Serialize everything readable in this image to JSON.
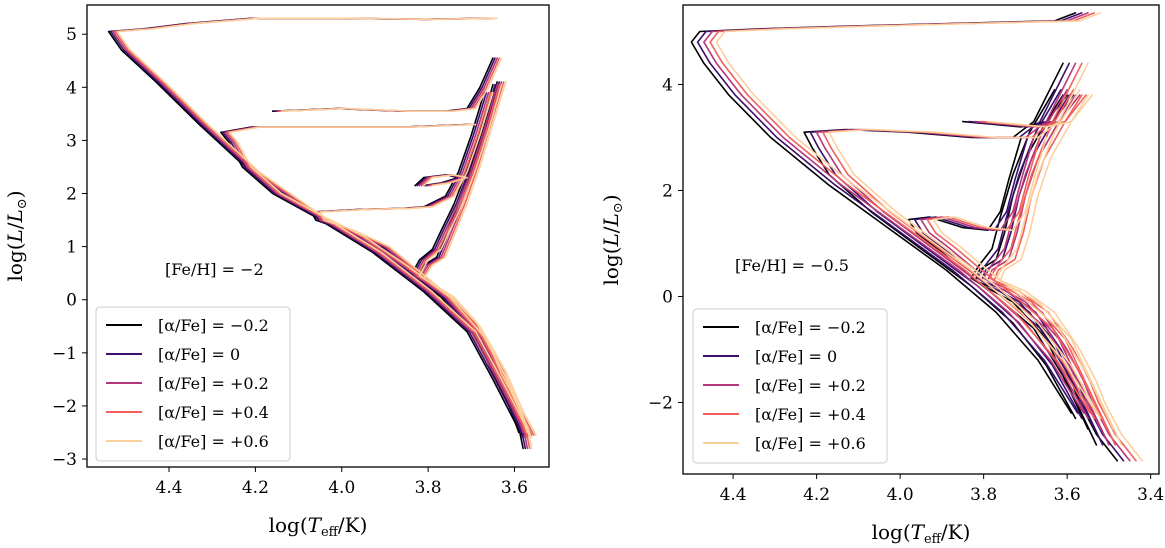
{
  "chart_data": [
    {
      "type": "line",
      "panel": "left",
      "xlabel": "log(T_eff/K)",
      "ylabel": "log(L/L_⊙)",
      "xlim": [
        4.59,
        3.52
      ],
      "ylim": [
        -3.15,
        5.55
      ],
      "x_inverted": true,
      "xticks": [
        4.4,
        4.2,
        4.0,
        3.8,
        3.6
      ],
      "yticks": [
        -3,
        -2,
        -1,
        0,
        1,
        2,
        3,
        4,
        5
      ],
      "xtick_labels": [
        "4.4",
        "4.2",
        "4.0",
        "3.8",
        "3.6"
      ],
      "ytick_labels": [
        "−3",
        "−2",
        "−1",
        "0",
        "1",
        "2",
        "3",
        "4",
        "5"
      ],
      "annotation": "[Fe/H] = −2",
      "grid": false,
      "legend_position": "lower-left",
      "legend": [
        "[α/Fe] = −0.2",
        "[α/Fe] = 0",
        "[α/Fe] = +0.2",
        "[α/Fe] = +0.4",
        "[α/Fe] = +0.6"
      ],
      "series_colors": [
        "#000004",
        "#3b0f70",
        "#b5367a",
        "#f1605d",
        "#fcd09d"
      ],
      "series_shift": [
        -0.01,
        -0.005,
        0.0,
        0.005,
        0.01
      ],
      "tracks": [
        [
          [
            3.57,
            -2.8
          ],
          [
            3.58,
            -2.4
          ],
          [
            3.6,
            -2.05
          ],
          [
            3.62,
            -1.7
          ],
          [
            3.64,
            -1.4
          ],
          [
            3.66,
            -1.0
          ],
          [
            3.7,
            -0.4
          ],
          [
            3.75,
            0.05
          ],
          [
            3.8,
            0.3
          ],
          [
            3.82,
            0.4
          ],
          [
            3.8,
            0.65
          ],
          [
            3.77,
            0.8
          ],
          [
            3.75,
            1.2
          ],
          [
            3.72,
            1.8
          ],
          [
            3.69,
            2.5
          ],
          [
            3.66,
            3.3
          ],
          [
            3.63,
            4.1
          ]
        ],
        [
          [
            3.57,
            -2.6
          ],
          [
            3.6,
            -2.0
          ],
          [
            3.64,
            -1.3
          ],
          [
            3.7,
            -0.4
          ],
          [
            3.76,
            0.1
          ],
          [
            3.81,
            0.35
          ],
          [
            3.83,
            0.45
          ],
          [
            3.81,
            0.75
          ],
          [
            3.78,
            0.95
          ],
          [
            3.76,
            1.3
          ],
          [
            3.73,
            1.8
          ],
          [
            3.7,
            2.45
          ],
          [
            3.67,
            3.2
          ],
          [
            3.64,
            4.05
          ]
        ],
        [
          [
            3.56,
            -2.55
          ],
          [
            3.59,
            -2.1
          ],
          [
            3.63,
            -1.35
          ],
          [
            3.69,
            -0.5
          ],
          [
            3.75,
            0.0
          ],
          [
            3.84,
            0.6
          ],
          [
            3.9,
            1.0
          ],
          [
            3.98,
            1.3
          ],
          [
            4.05,
            1.5
          ],
          [
            4.06,
            1.65
          ],
          [
            3.95,
            1.7
          ],
          [
            3.85,
            1.72
          ],
          [
            3.8,
            1.75
          ],
          [
            3.75,
            1.95
          ],
          [
            3.72,
            2.4
          ],
          [
            3.69,
            3.1
          ],
          [
            3.66,
            3.9
          ]
        ],
        [
          [
            3.58,
            -2.5
          ],
          [
            3.62,
            -1.6
          ],
          [
            3.68,
            -0.7
          ],
          [
            3.76,
            0.05
          ],
          [
            3.86,
            0.65
          ],
          [
            3.96,
            1.2
          ],
          [
            4.06,
            1.6
          ],
          [
            4.15,
            2.0
          ],
          [
            4.22,
            2.5
          ],
          [
            4.25,
            2.95
          ],
          [
            4.27,
            3.15
          ],
          [
            4.2,
            3.25
          ],
          [
            4.0,
            3.25
          ],
          [
            3.85,
            3.25
          ],
          [
            3.7,
            3.3
          ]
        ],
        [
          [
            3.58,
            -2.45
          ],
          [
            3.64,
            -1.5
          ],
          [
            3.7,
            -0.6
          ],
          [
            3.8,
            0.15
          ],
          [
            3.92,
            0.9
          ],
          [
            4.05,
            1.55
          ],
          [
            4.2,
            2.4
          ],
          [
            4.32,
            3.3
          ],
          [
            4.42,
            4.1
          ],
          [
            4.5,
            4.7
          ],
          [
            4.53,
            5.05
          ],
          [
            4.45,
            5.1
          ],
          [
            4.35,
            5.2
          ],
          [
            4.2,
            5.3
          ],
          [
            4.0,
            5.3
          ],
          [
            3.8,
            5.28
          ],
          [
            3.65,
            5.3
          ]
        ],
        [
          [
            3.82,
            2.15
          ],
          [
            3.8,
            2.3
          ],
          [
            3.75,
            2.35
          ],
          [
            3.72,
            2.3
          ],
          [
            3.76,
            2.2
          ],
          [
            3.8,
            2.15
          ]
        ],
        [
          [
            4.15,
            3.55
          ],
          [
            4.0,
            3.6
          ],
          [
            3.85,
            3.55
          ],
          [
            3.75,
            3.55
          ],
          [
            3.7,
            3.6
          ],
          [
            3.67,
            4.0
          ],
          [
            3.64,
            4.55
          ]
        ]
      ]
    },
    {
      "type": "line",
      "panel": "right",
      "xlabel": "log(T_eff/K)",
      "ylabel": "log(L/L_⊙)",
      "xlim": [
        4.52,
        3.38
      ],
      "ylim": [
        -3.35,
        5.5
      ],
      "x_inverted": true,
      "xticks": [
        4.4,
        4.2,
        4.0,
        3.8,
        3.6,
        3.4
      ],
      "yticks": [
        -2,
        0,
        2,
        4
      ],
      "xtick_labels": [
        "4.4",
        "4.2",
        "4.0",
        "3.8",
        "3.6",
        "3.4"
      ],
      "ytick_labels": [
        "−2",
        "0",
        "2",
        "4"
      ],
      "annotation": "[Fe/H] = −0.5",
      "grid": false,
      "legend_position": "lower-left",
      "legend": [
        "[α/Fe] = −0.2",
        "[α/Fe] = 0",
        "[α/Fe] = +0.2",
        "[α/Fe] = +0.4",
        "[α/Fe] = +0.6"
      ],
      "series_colors": [
        "#000004",
        "#3b0f70",
        "#b5367a",
        "#f1605d",
        "#fcd09d"
      ],
      "series_shift": [
        -0.03,
        -0.015,
        0.0,
        0.015,
        0.03
      ],
      "tracks": [
        [
          [
            3.45,
            -3.1
          ],
          [
            3.5,
            -2.6
          ],
          [
            3.54,
            -2.0
          ],
          [
            3.56,
            -1.6
          ],
          [
            3.6,
            -1.0
          ],
          [
            3.66,
            -0.3
          ],
          [
            3.73,
            0.1
          ],
          [
            3.79,
            0.3
          ],
          [
            3.78,
            0.5
          ],
          [
            3.74,
            0.7
          ],
          [
            3.72,
            1.2
          ],
          [
            3.7,
            1.9
          ],
          [
            3.67,
            2.6
          ],
          [
            3.62,
            3.3
          ],
          [
            3.57,
            3.8
          ]
        ],
        [
          [
            3.5,
            -2.8
          ],
          [
            3.56,
            -1.8
          ],
          [
            3.62,
            -0.8
          ],
          [
            3.7,
            -0.1
          ],
          [
            3.77,
            0.2
          ],
          [
            3.8,
            0.35
          ],
          [
            3.78,
            0.6
          ],
          [
            3.75,
            0.9
          ],
          [
            3.73,
            1.5
          ],
          [
            3.7,
            2.3
          ],
          [
            3.66,
            3.1
          ],
          [
            3.6,
            3.9
          ]
        ],
        [
          [
            3.52,
            -2.5
          ],
          [
            3.58,
            -1.5
          ],
          [
            3.65,
            -0.6
          ],
          [
            3.74,
            0.0
          ],
          [
            3.82,
            0.5
          ],
          [
            3.88,
            0.9
          ],
          [
            3.93,
            1.2
          ],
          [
            3.95,
            1.45
          ],
          [
            3.9,
            1.5
          ],
          [
            3.82,
            1.3
          ],
          [
            3.76,
            1.25
          ],
          [
            3.73,
            1.6
          ],
          [
            3.71,
            2.2
          ],
          [
            3.68,
            3.0
          ]
        ],
        [
          [
            3.55,
            -2.3
          ],
          [
            3.62,
            -1.3
          ],
          [
            3.7,
            -0.5
          ],
          [
            3.8,
            0.2
          ],
          [
            3.92,
            0.9
          ],
          [
            4.04,
            1.6
          ],
          [
            4.14,
            2.3
          ],
          [
            4.18,
            2.8
          ],
          [
            4.2,
            3.1
          ],
          [
            4.1,
            3.15
          ],
          [
            3.95,
            3.1
          ],
          [
            3.8,
            3.0
          ],
          [
            3.7,
            3.0
          ],
          [
            3.65,
            3.3
          ],
          [
            3.58,
            4.4
          ]
        ],
        [
          [
            3.56,
            -2.2
          ],
          [
            3.64,
            -1.2
          ],
          [
            3.74,
            -0.3
          ],
          [
            3.86,
            0.5
          ],
          [
            4.0,
            1.3
          ],
          [
            4.14,
            2.1
          ],
          [
            4.28,
            3.0
          ],
          [
            4.38,
            3.8
          ],
          [
            4.44,
            4.4
          ],
          [
            4.47,
            4.8
          ],
          [
            4.45,
            5.0
          ],
          [
            4.3,
            5.05
          ],
          [
            4.1,
            5.1
          ],
          [
            3.85,
            5.15
          ],
          [
            3.6,
            5.2
          ],
          [
            3.55,
            5.35
          ]
        ],
        [
          [
            3.82,
            3.3
          ],
          [
            3.75,
            3.25
          ],
          [
            3.68,
            3.2
          ],
          [
            3.62,
            3.3
          ],
          [
            3.58,
            3.8
          ]
        ]
      ]
    }
  ]
}
